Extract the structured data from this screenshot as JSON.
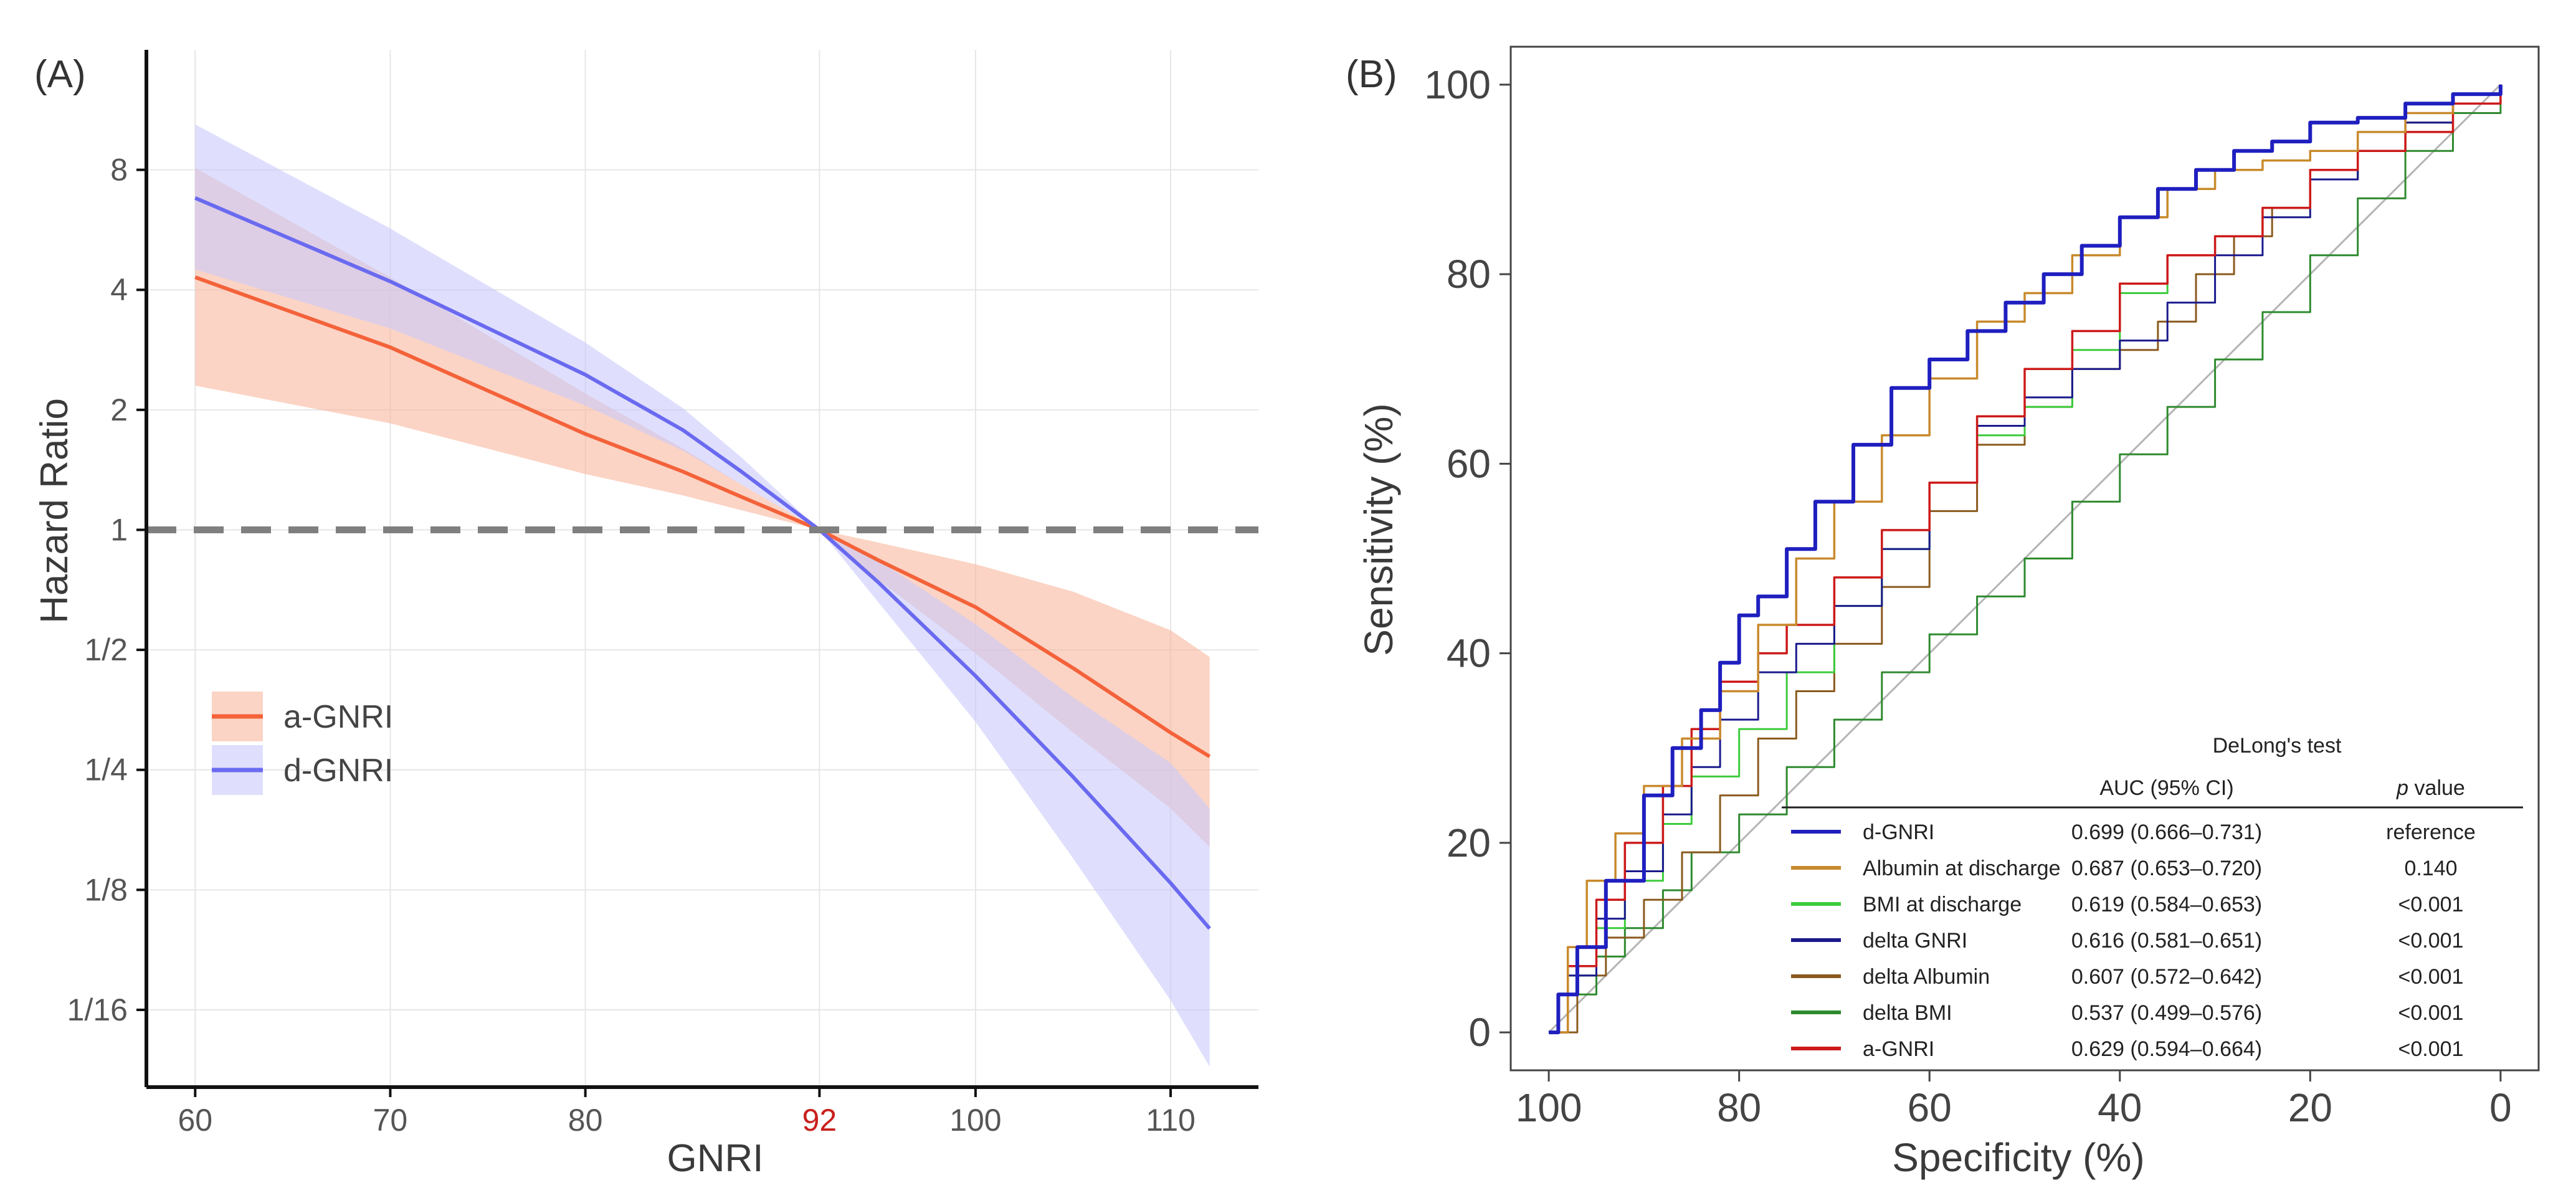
{
  "chart_data": [
    {
      "panel": "(A)",
      "type": "line",
      "title": "",
      "xlabel": "GNRI",
      "ylabel": "Hazard Ratio",
      "y_scale": "log2",
      "xlim": [
        57.5,
        114.5
      ],
      "ylim": [
        0.04,
        16
      ],
      "x_ticks": [
        60,
        70,
        80,
        92,
        100,
        110
      ],
      "x_tick_labels": [
        "60",
        "70",
        "80",
        "92",
        "100",
        "110"
      ],
      "highlight_tick": {
        "value": 92,
        "label": "92",
        "color": "#c8201d"
      },
      "y_ticks": [
        8,
        4,
        2,
        1,
        0.5,
        0.25,
        0.125,
        0.0625
      ],
      "y_tick_labels": [
        "8",
        "4",
        "2",
        "1",
        "1/2",
        "1/4",
        "1/8",
        "1/16"
      ],
      "reference_line": {
        "y": 1,
        "style": "dashed",
        "color": "#7f7f7f"
      },
      "grid": true,
      "legend": {
        "position": "middle-left",
        "entries": [
          "a-GNRI",
          "d-GNRI"
        ]
      },
      "series": [
        {
          "name": "a-GNRI",
          "color": "#f4623a",
          "band_color": "#f9b89e",
          "x": [
            60,
            70,
            80,
            85,
            88,
            92,
            95,
            100,
            105,
            110,
            112
          ],
          "y": [
            4.3,
            2.87,
            1.74,
            1.4,
            1.21,
            1.0,
            0.84,
            0.64,
            0.45,
            0.31,
            0.27
          ],
          "lower": [
            2.3,
            1.85,
            1.38,
            1.22,
            1.12,
            1.0,
            0.75,
            0.49,
            0.31,
            0.2,
            0.16
          ],
          "upper": [
            8.1,
            4.3,
            2.2,
            1.6,
            1.3,
            1.0,
            0.93,
            0.82,
            0.7,
            0.56,
            0.48
          ]
        },
        {
          "name": "d-GNRI",
          "color": "#6a6af0",
          "band_color": "#c9c9fb",
          "x": [
            60,
            70,
            80,
            85,
            88,
            92,
            95,
            100,
            105,
            110,
            112
          ],
          "y": [
            6.8,
            4.2,
            2.45,
            1.78,
            1.4,
            1.0,
            0.74,
            0.43,
            0.24,
            0.13,
            0.1
          ],
          "lower": [
            4.5,
            3.2,
            2.05,
            1.58,
            1.3,
            1.0,
            0.66,
            0.33,
            0.15,
            0.066,
            0.045
          ],
          "upper": [
            10.4,
            5.7,
            2.95,
            2.02,
            1.52,
            1.0,
            0.84,
            0.58,
            0.38,
            0.26,
            0.2
          ]
        }
      ]
    },
    {
      "panel": "(B)",
      "type": "line",
      "title": "",
      "xlabel": "Specificity (%)",
      "ylabel": "Sensitivity (%)",
      "xlim": [
        104,
        -4
      ],
      "ylim": [
        -4,
        104
      ],
      "x_ticks": [
        100,
        80,
        60,
        40,
        20,
        0
      ],
      "x_tick_labels": [
        "100",
        "80",
        "60",
        "40",
        "20",
        "0"
      ],
      "y_ticks": [
        0,
        20,
        40,
        60,
        80,
        100
      ],
      "y_tick_labels": [
        "0",
        "20",
        "40",
        "60",
        "80",
        "100"
      ],
      "diagonal": {
        "from": [
          100,
          0
        ],
        "to": [
          0,
          100
        ],
        "color": "#b4b4b4"
      },
      "grid": false,
      "table": {
        "title": "DeLong's test",
        "col_auc": "AUC (95% CI)",
        "col_p_prefix": "p",
        "col_p_suffix": " value",
        "rows": [
          {
            "name": "d-GNRI",
            "auc": "0.699 (0.666–0.731)",
            "p": "reference",
            "color": "#1f1fbf"
          },
          {
            "name": "Albumin at discharge",
            "auc": "0.687 (0.653–0.720)",
            "p": "0.140",
            "color": "#c88a2c"
          },
          {
            "name": "BMI at discharge",
            "auc": "0.619 (0.584–0.653)",
            "p": "<0.001",
            "color": "#3ccc3c"
          },
          {
            "name": "delta GNRI",
            "auc": "0.616 (0.581–0.651)",
            "p": "<0.001",
            "color": "#1a1a8c"
          },
          {
            "name": "delta Albumin",
            "auc": "0.607 (0.572–0.642)",
            "p": "<0.001",
            "color": "#8a5a1e"
          },
          {
            "name": "delta BMI",
            "auc": "0.537 (0.499–0.576)",
            "p": "<0.001",
            "color": "#2e8a2e"
          },
          {
            "name": "a-GNRI",
            "auc": "0.629 (0.594–0.664)",
            "p": "<0.001",
            "color": "#cc1a1a"
          }
        ]
      },
      "series": [
        {
          "name": "delta BMI",
          "color": "#2e8a2e",
          "width": 3,
          "x": [
            100,
            98,
            95,
            92,
            88,
            85,
            80,
            75,
            70,
            65,
            60,
            55,
            50,
            45,
            40,
            35,
            30,
            25,
            20,
            15,
            10,
            5,
            0
          ],
          "y": [
            0,
            4,
            8,
            11,
            15,
            19,
            23,
            28,
            33,
            38,
            42,
            46,
            50,
            56,
            61,
            66,
            71,
            76,
            82,
            88,
            93,
            97,
            100
          ]
        },
        {
          "name": "delta Albumin",
          "color": "#8a5a1e",
          "width": 3,
          "x": [
            100,
            97,
            94,
            90,
            86,
            82,
            78,
            74,
            70,
            65,
            60,
            55,
            50,
            45,
            40,
            36,
            32,
            28,
            24,
            20,
            15,
            10,
            5,
            0
          ],
          "y": [
            0,
            6,
            10,
            14,
            19,
            25,
            31,
            36,
            41,
            47,
            55,
            62,
            66,
            70,
            72,
            75,
            80,
            84,
            87,
            90,
            93,
            96,
            98,
            100
          ]
        },
        {
          "name": "BMI at discharge",
          "color": "#3ccc3c",
          "width": 3,
          "x": [
            100,
            98,
            95,
            92,
            88,
            85,
            80,
            75,
            70,
            65,
            60,
            55,
            50,
            45,
            40,
            35,
            30,
            25,
            20,
            15,
            10,
            5,
            0
          ],
          "y": [
            0,
            6,
            11,
            16,
            22,
            27,
            32,
            38,
            45,
            51,
            58,
            63,
            66,
            72,
            78,
            82,
            84,
            87,
            90,
            93,
            95,
            98,
            100
          ]
        },
        {
          "name": "delta GNRI",
          "color": "#1a1a8c",
          "width": 3,
          "x": [
            100,
            98,
            95,
            92,
            88,
            85,
            82,
            78,
            74,
            70,
            65,
            60,
            55,
            50,
            45,
            40,
            35,
            30,
            25,
            20,
            15,
            10,
            5,
            0
          ],
          "y": [
            0,
            6,
            12,
            17,
            23,
            28,
            33,
            38,
            41,
            45,
            51,
            58,
            64,
            67,
            70,
            73,
            77,
            82,
            86,
            90,
            93,
            96,
            98,
            100
          ]
        },
        {
          "name": "a-GNRI",
          "color": "#cc1a1a",
          "width": 3.5,
          "x": [
            100,
            98,
            95,
            92,
            88,
            85,
            82,
            78,
            75,
            70,
            65,
            60,
            55,
            50,
            45,
            40,
            35,
            30,
            25,
            20,
            15,
            10,
            5,
            0
          ],
          "y": [
            0,
            7,
            14,
            20,
            26,
            32,
            37,
            40,
            43,
            48,
            53,
            58,
            65,
            70,
            74,
            79,
            82,
            84,
            87,
            91,
            93,
            95,
            98,
            100
          ]
        },
        {
          "name": "Albumin at discharge",
          "color": "#c88a2c",
          "width": 3.5,
          "x": [
            100,
            98,
            96,
            93,
            90,
            86,
            82,
            78,
            74,
            70,
            65,
            60,
            55,
            50,
            45,
            40,
            35,
            30,
            25,
            20,
            15,
            10,
            5,
            0
          ],
          "y": [
            0,
            9,
            16,
            21,
            26,
            31,
            36,
            43,
            50,
            56,
            63,
            69,
            75,
            78,
            82,
            86,
            89,
            91,
            92,
            93,
            95,
            97,
            99,
            100
          ]
        },
        {
          "name": "d-GNRI",
          "color": "#1f1fbf",
          "width": 6,
          "x": [
            100,
            99,
            97,
            94,
            90,
            87,
            84,
            82,
            80,
            78,
            75,
            72,
            68,
            64,
            60,
            56,
            52,
            48,
            44,
            40,
            36,
            32,
            28,
            24,
            20,
            15,
            10,
            5,
            0
          ],
          "y": [
            0,
            4,
            9,
            16,
            25,
            30,
            34,
            39,
            44,
            46,
            51,
            56,
            62,
            68,
            71,
            74,
            77,
            80,
            83,
            86,
            89,
            91,
            93,
            94,
            96,
            96.5,
            98,
            99,
            100
          ]
        }
      ]
    }
  ]
}
